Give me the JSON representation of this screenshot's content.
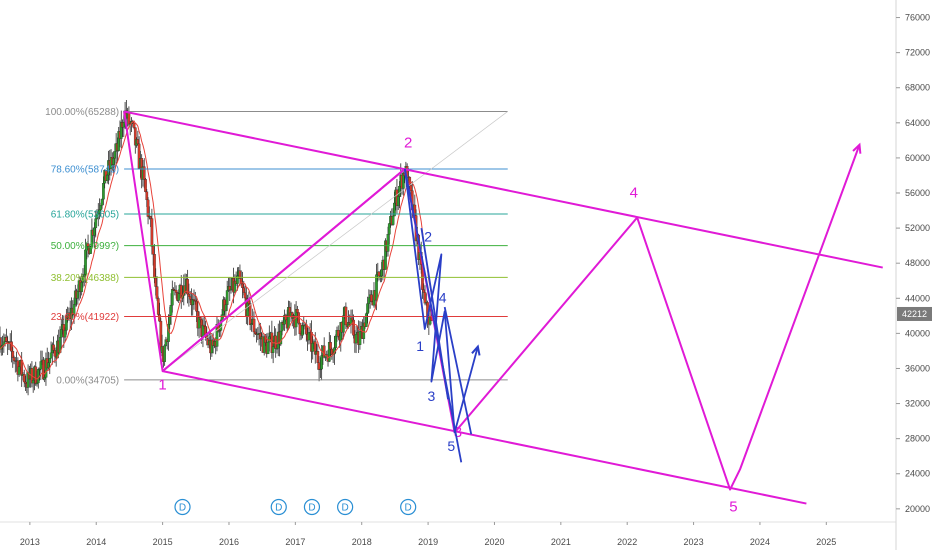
{
  "chart_data": {
    "type": "line",
    "x_domain": [
      2012.55,
      2026.05
    ],
    "y_domain": [
      18500,
      78000
    ],
    "y_axis": {
      "position": "right",
      "ticks": [
        20000,
        24000,
        28000,
        32000,
        36000,
        40000,
        44000,
        48000,
        52000,
        56000,
        60000,
        64000,
        68000,
        72000,
        76000
      ],
      "tick_labels": [
        "20000",
        "24000",
        "28000",
        "32000",
        "36000",
        "40000",
        "44000",
        "48000",
        "52000",
        "56000",
        "60000",
        "64000",
        "68000",
        "72000",
        "76000"
      ]
    },
    "x_axis": {
      "ticks": [
        2013,
        2014,
        2015,
        2016,
        2017,
        2018,
        2019,
        2020,
        2021,
        2022,
        2023,
        2024,
        2025
      ],
      "tick_labels": [
        "2013",
        "2014",
        "2015",
        "2016",
        "2017",
        "2018",
        "2019",
        "2020",
        "2021",
        "2022",
        "2023",
        "2024",
        "2025"
      ]
    },
    "current_price": {
      "value": 42212,
      "label": "42212",
      "color": "#7a7a7a"
    },
    "price_series": {
      "name": "",
      "keypoints": [
        [
          2012.55,
          39500
        ],
        [
          2012.75,
          37500
        ],
        [
          2012.95,
          34500
        ],
        [
          2013.2,
          36000
        ],
        [
          2013.45,
          39000
        ],
        [
          2013.7,
          44000
        ],
        [
          2013.95,
          52000
        ],
        [
          2014.15,
          58000
        ],
        [
          2014.32,
          61000
        ],
        [
          2014.42,
          65288
        ],
        [
          2014.55,
          63000
        ],
        [
          2014.7,
          58000
        ],
        [
          2014.82,
          52000
        ],
        [
          2014.9,
          44000
        ],
        [
          2015.0,
          37000
        ],
        [
          2015.15,
          44000
        ],
        [
          2015.35,
          46000
        ],
        [
          2015.55,
          41000
        ],
        [
          2015.75,
          38000
        ],
        [
          2015.95,
          44000
        ],
        [
          2016.15,
          46000
        ],
        [
          2016.35,
          41000
        ],
        [
          2016.55,
          38500
        ],
        [
          2016.75,
          39500
        ],
        [
          2016.95,
          42500
        ],
        [
          2017.15,
          40000
        ],
        [
          2017.35,
          37000
        ],
        [
          2017.55,
          38500
        ],
        [
          2017.75,
          42000
        ],
        [
          2017.95,
          39000
        ],
        [
          2018.1,
          43000
        ],
        [
          2018.3,
          47000
        ],
        [
          2018.5,
          55000
        ],
        [
          2018.65,
          58743
        ],
        [
          2018.75,
          55000
        ],
        [
          2018.85,
          50000
        ],
        [
          2018.95,
          43000
        ],
        [
          2019.05,
          41000
        ]
      ],
      "moving_average_color": "#e8433a",
      "up_color": "#2e9a2e",
      "down_color": "#d23a2a"
    },
    "fibonacci": {
      "x_start": 2014.42,
      "x_end": 2020.2,
      "levels": [
        {
          "label": "100.00%(65288)",
          "value": 65288,
          "color": "#8c8c8c"
        },
        {
          "label": "78.60%(58743)",
          "value": 58743,
          "color": "#3d8fd1"
        },
        {
          "label": "61.80%(53605)",
          "value": 53605,
          "color": "#27a59a"
        },
        {
          "label": "50.00%(4999?)",
          "value": 49996,
          "color": "#3db03d"
        },
        {
          "label": "38.20%(46388)",
          "value": 46388,
          "color": "#8fbf30"
        },
        {
          "label": "23.60%(41922)",
          "value": 41922,
          "color": "#e03b3b"
        },
        {
          "label": "0.00%(34705)",
          "value": 34705,
          "color": "#8c8c8c"
        }
      ]
    },
    "channel": {
      "color": "#e01ad6",
      "upper": [
        [
          2014.42,
          65288
        ],
        [
          2025.85,
          47500
        ]
      ],
      "lower": [
        [
          2015.0,
          35700
        ],
        [
          2024.7,
          20600
        ]
      ]
    },
    "pink_waves": {
      "color": "#e01ad6",
      "path": [
        [
          2014.42,
          65288
        ],
        [
          2015.0,
          35700
        ],
        [
          2018.65,
          58743
        ],
        [
          2019.4,
          28700
        ],
        [
          2022.15,
          53200
        ],
        [
          2023.55,
          22200
        ],
        [
          2023.7,
          24500
        ],
        [
          2025.5,
          61500
        ]
      ],
      "arrow_end": true,
      "labels": [
        {
          "text": "1",
          "x": 2015.0,
          "y": 33600
        },
        {
          "text": "2",
          "x": 2018.7,
          "y": 61200
        },
        {
          "text": "3",
          "x": 2019.45,
          "y": 28200
        },
        {
          "text": "4",
          "x": 2022.1,
          "y": 55500
        },
        {
          "text": "5",
          "x": 2023.6,
          "y": 19700
        }
      ]
    },
    "blue_waves": {
      "color": "#2a3fc7",
      "paths": [
        [
          [
            2018.65,
            58743
          ],
          [
            2018.95,
            40500
          ],
          [
            2019.2,
            49000
          ],
          [
            2019.05,
            34500
          ],
          [
            2019.25,
            42500
          ],
          [
            2019.4,
            28700
          ],
          [
            2019.75,
            38500
          ]
        ],
        [
          [
            2018.65,
            58743
          ],
          [
            2019.5,
            25300
          ]
        ],
        [
          [
            2019.25,
            43000
          ],
          [
            2019.65,
            28500
          ]
        ],
        [
          [
            2018.9,
            52000
          ],
          [
            2019.3,
            32500
          ]
        ]
      ],
      "arrow_end": true,
      "labels": [
        {
          "text": "2",
          "x": 2019.0,
          "y": 50500
        },
        {
          "text": "1",
          "x": 2018.88,
          "y": 38000
        },
        {
          "text": "4",
          "x": 2019.22,
          "y": 43500
        },
        {
          "text": "3",
          "x": 2019.05,
          "y": 32300
        },
        {
          "text": "5",
          "x": 2019.35,
          "y": 26600
        }
      ]
    },
    "ascending_trendline": {
      "color": "#e01ad6",
      "from": [
        2015.0,
        35700
      ],
      "to": [
        2018.65,
        58743
      ],
      "faint_extension_to": [
        2020.2,
        65300
      ]
    },
    "dividend_markers": {
      "label": "D",
      "color": "#2a8fd4",
      "x": [
        2015.3,
        2016.75,
        2017.25,
        2017.75,
        2018.7
      ]
    }
  }
}
